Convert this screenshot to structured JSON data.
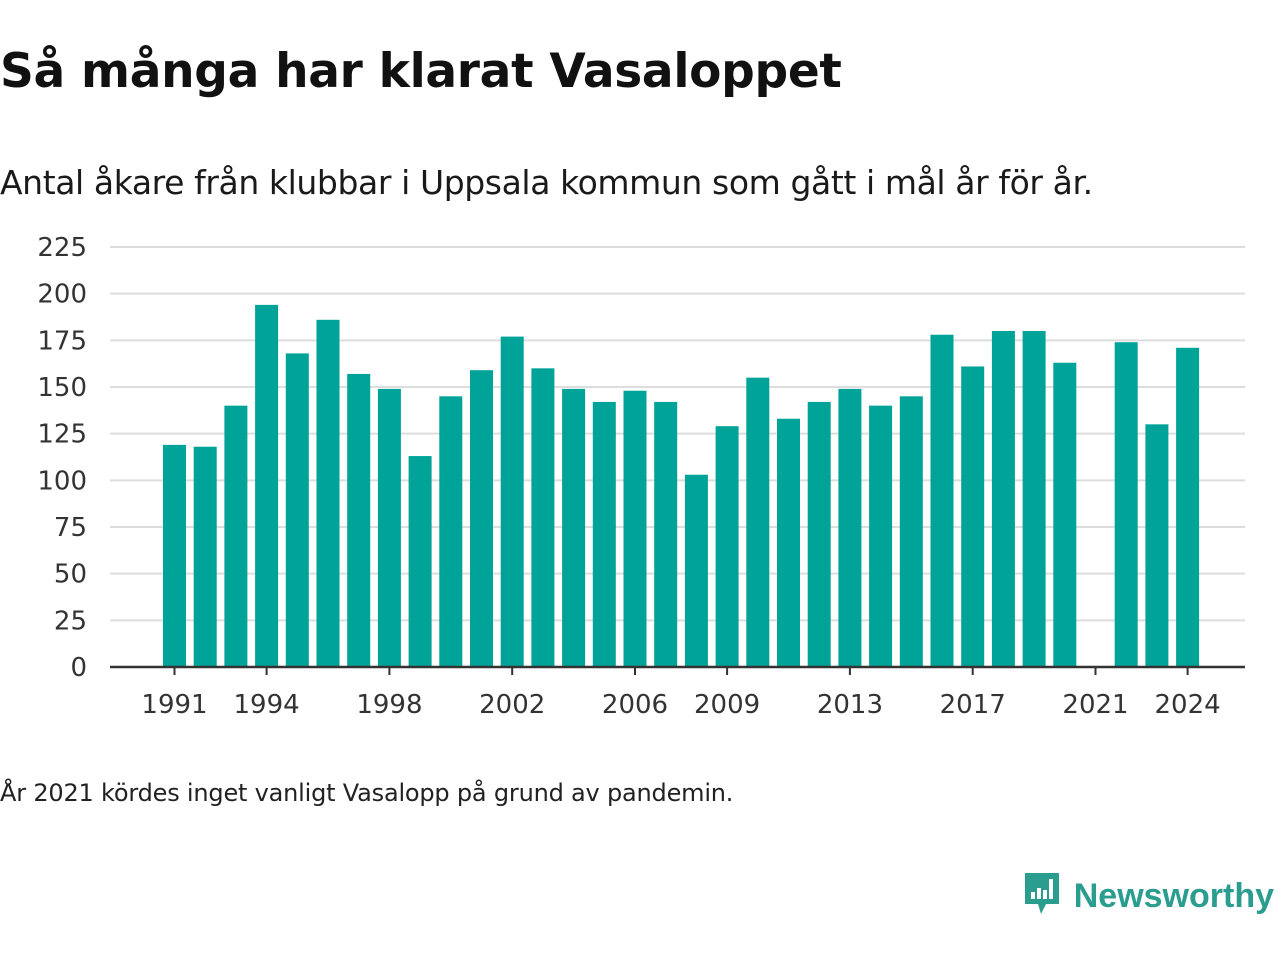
{
  "title": "Så många har klarat Vasaloppet",
  "subtitle": "Antal åkare från klubbar i Uppsala kommun som gått i mål år för år.",
  "footnote": "År 2021 kördes inget vanligt Vasalopp på grund av pandemin.",
  "brand": {
    "name": "Newsworthy",
    "icon": "newsworthy-logo-icon",
    "color": "#2a9d8f"
  },
  "colors": {
    "bar": "#00a398",
    "grid": "#dddddd",
    "axis": "#333333"
  },
  "chart_data": {
    "type": "bar",
    "title": "Så många har klarat Vasaloppet",
    "subtitle": "Antal åkare från klubbar i Uppsala kommun som gått i mål år för år.",
    "xlabel": "",
    "ylabel": "",
    "ylim": [
      0,
      225
    ],
    "yticks": [
      0,
      25,
      50,
      75,
      100,
      125,
      150,
      175,
      200,
      225
    ],
    "xtick_labels": [
      "1991",
      "1994",
      "1998",
      "2002",
      "2006",
      "2009",
      "2013",
      "2017",
      "2021",
      "2024"
    ],
    "grid": true,
    "legend": "none",
    "categories": [
      1991,
      1992,
      1993,
      1994,
      1995,
      1996,
      1997,
      1998,
      1999,
      2000,
      2001,
      2002,
      2003,
      2004,
      2005,
      2006,
      2007,
      2008,
      2009,
      2010,
      2011,
      2012,
      2013,
      2014,
      2015,
      2016,
      2017,
      2018,
      2019,
      2020,
      2021,
      2022,
      2023,
      2024
    ],
    "values": [
      119,
      118,
      140,
      194,
      168,
      186,
      157,
      149,
      113,
      145,
      159,
      177,
      160,
      149,
      142,
      148,
      142,
      103,
      129,
      155,
      133,
      142,
      149,
      140,
      145,
      178,
      161,
      180,
      180,
      163,
      null,
      174,
      130,
      171
    ]
  }
}
